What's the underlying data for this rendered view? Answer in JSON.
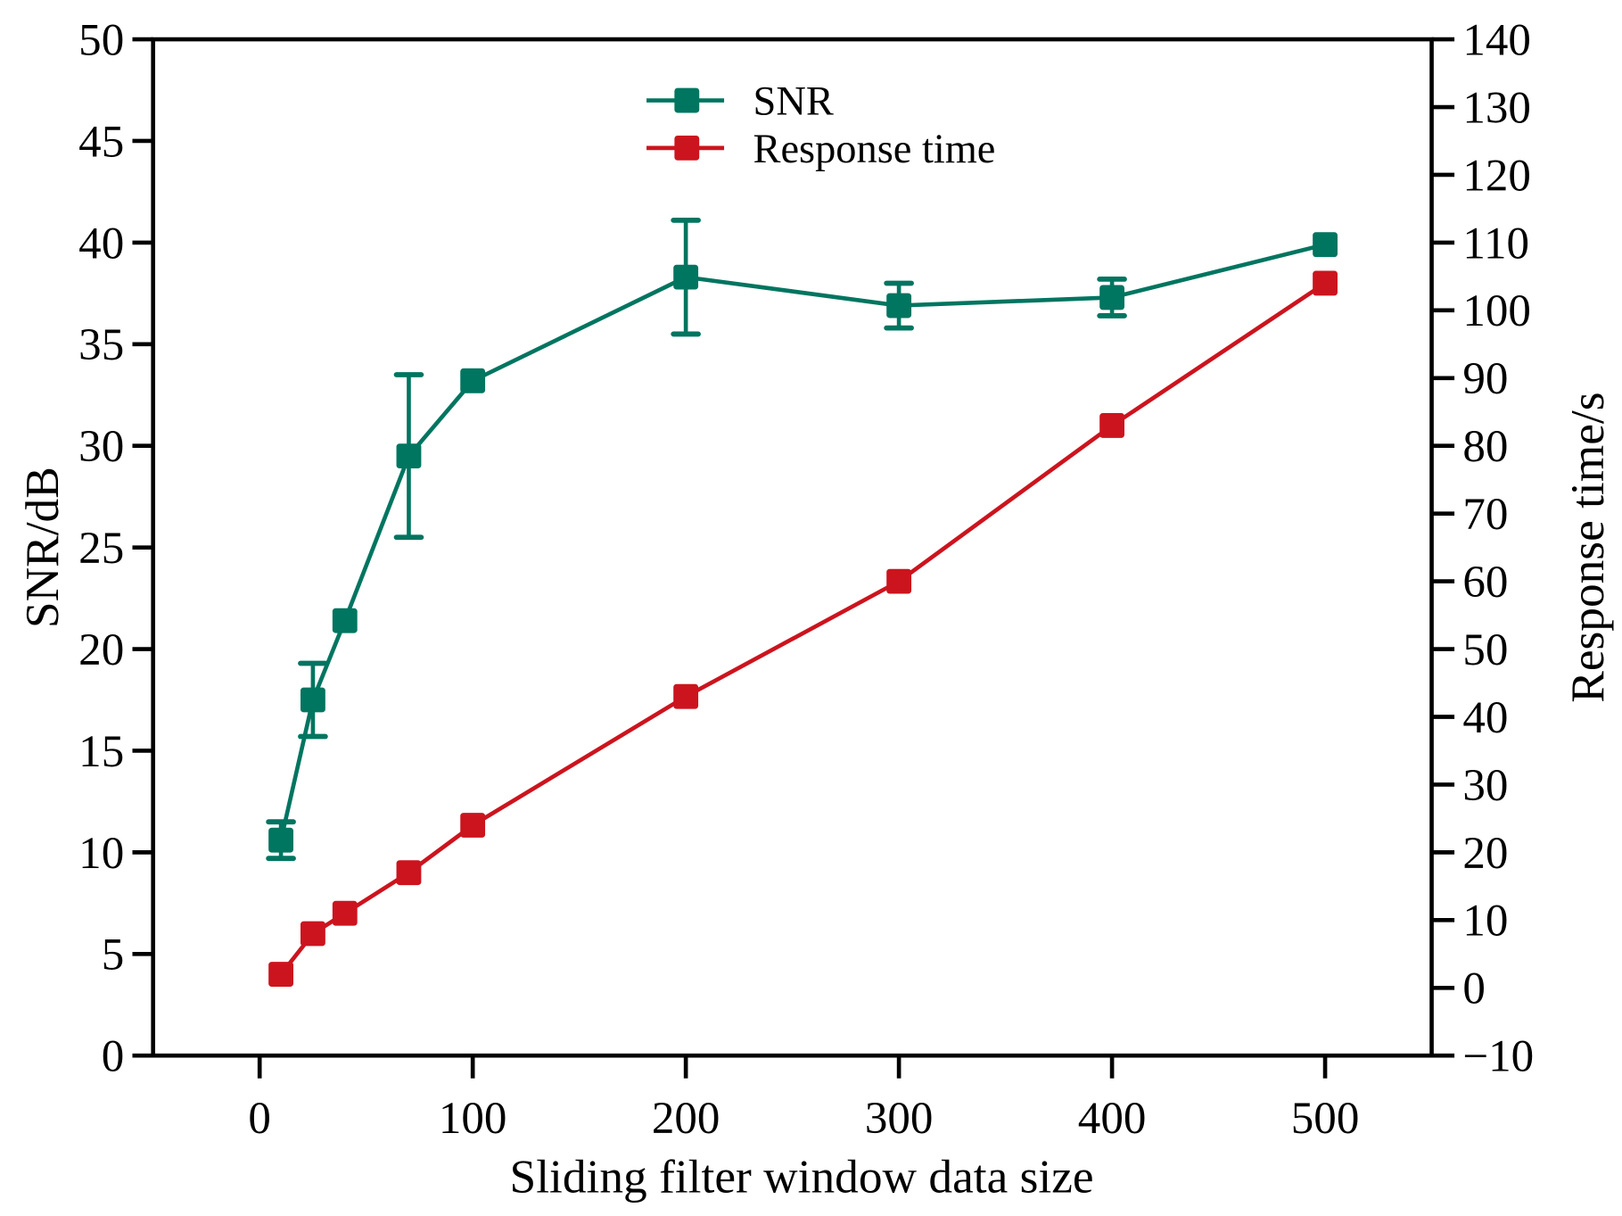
{
  "chart_data": {
    "type": "line",
    "title": "",
    "xlabel": "Sliding filter window data size",
    "ylabel": "SNR/dB",
    "y2label": "Response time/s",
    "xlim": [
      -50,
      550
    ],
    "ylim": [
      0,
      50
    ],
    "y2lim": [
      -10,
      140
    ],
    "xticks": [
      0,
      100,
      200,
      300,
      400,
      500
    ],
    "xtick_labels": [
      "0",
      "100",
      "200",
      "300",
      "400",
      "500"
    ],
    "yticks": [
      0,
      5,
      10,
      15,
      20,
      25,
      30,
      35,
      40,
      45,
      50
    ],
    "ytick_labels": [
      "0",
      "5",
      "10",
      "15",
      "20",
      "25",
      "30",
      "35",
      "40",
      "45",
      "50"
    ],
    "y2ticks": [
      -10,
      0,
      10,
      20,
      30,
      40,
      50,
      60,
      70,
      80,
      90,
      100,
      110,
      120,
      130,
      140
    ],
    "y2tick_labels": [
      "−10",
      "0",
      "10",
      "20",
      "30",
      "40",
      "50",
      "60",
      "70",
      "80",
      "90",
      "100",
      "110",
      "120",
      "130",
      "140"
    ],
    "grid": false,
    "legend_position": "top-center",
    "x": [
      10,
      25,
      40,
      70,
      100,
      200,
      300,
      400,
      500
    ],
    "series": [
      {
        "name": "SNR",
        "axis": "left",
        "color": "#007560",
        "marker": "square",
        "values": [
          10.6,
          17.5,
          21.4,
          29.5,
          33.2,
          38.3,
          36.9,
          37.3,
          39.9
        ],
        "errors": [
          0.9,
          1.8,
          0,
          4.0,
          0,
          2.8,
          1.1,
          0.9,
          0
        ]
      },
      {
        "name": "Response time",
        "axis": "right",
        "color": "#cc141e",
        "marker": "square",
        "values": [
          2,
          8,
          11,
          17,
          24,
          43,
          60,
          83,
          104
        ]
      }
    ]
  }
}
